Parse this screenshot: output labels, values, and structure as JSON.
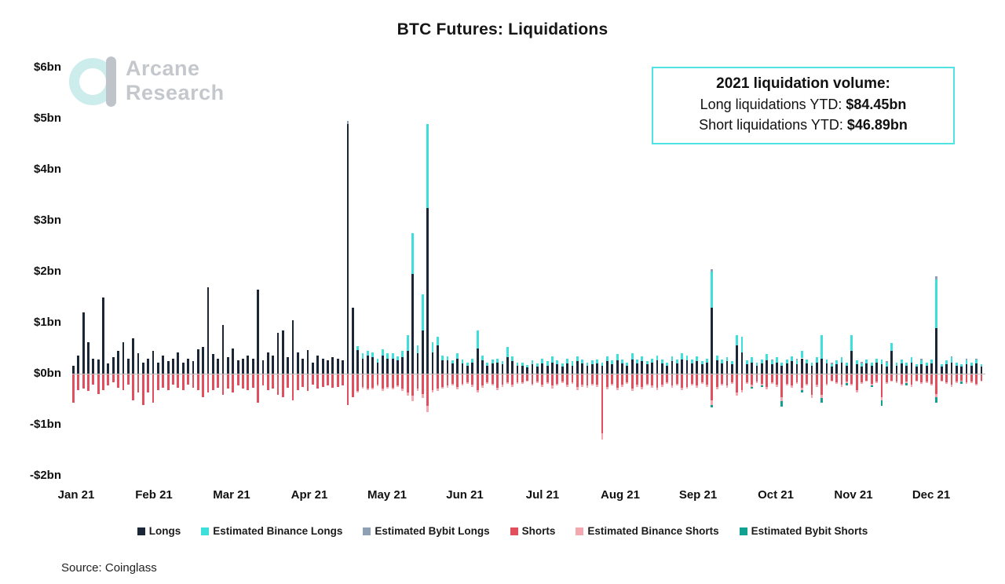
{
  "title": "BTC Futures: Liquidations",
  "logo": {
    "line1": "Arcane",
    "line2": "Research"
  },
  "info_box": {
    "heading": "2021 liquidation volume:",
    "lines": [
      {
        "label": "Long liquidations YTD: ",
        "value": "$84.45bn"
      },
      {
        "label": "Short liquidations YTD: ",
        "value": "$46.89bn"
      }
    ],
    "border_color": "#4fe3e3"
  },
  "source": "Source: Coinglass",
  "chart_data": {
    "type": "bar",
    "stacked": true,
    "grid": false,
    "legend_position": "bottom",
    "title": "BTC Futures: Liquidations",
    "unit": "bn USD per day",
    "ylim": [
      -2,
      6
    ],
    "y_ticks": [
      {
        "label": "$6bn",
        "value": 6
      },
      {
        "label": "$5bn",
        "value": 5
      },
      {
        "label": "$4bn",
        "value": 4
      },
      {
        "label": "$3bn",
        "value": 3
      },
      {
        "label": "$2bn",
        "value": 2
      },
      {
        "label": "$1bn",
        "value": 1
      },
      {
        "label": "$0bn",
        "value": 0
      },
      {
        "label": "-$1bn",
        "value": -1
      },
      {
        "label": "-$2bn",
        "value": -2
      }
    ],
    "x_tick_labels": [
      "Jan 21",
      "Feb 21",
      "Mar 21",
      "Apr 21",
      "May 21",
      "Jun 21",
      "Jul 21",
      "Aug 21",
      "Sep 21",
      "Oct 21",
      "Nov 21",
      "Dec 21"
    ],
    "series": [
      {
        "name": "Longs",
        "color": "#1b2737",
        "direction": "up",
        "values": [
          0.15,
          0.35,
          1.2,
          0.62,
          0.3,
          0.28,
          1.5,
          0.2,
          0.32,
          0.45,
          0.62,
          0.3,
          0.7,
          0.4,
          0.22,
          0.3,
          0.45,
          0.22,
          0.35,
          0.25,
          0.3,
          0.42,
          0.22,
          0.3,
          0.25,
          0.48,
          0.52,
          1.7,
          0.38,
          0.3,
          0.95,
          0.32,
          0.5,
          0.26,
          0.3,
          0.36,
          0.3,
          1.65,
          0.26,
          0.42,
          0.36,
          0.8,
          0.85,
          0.32,
          1.05,
          0.42,
          0.3,
          0.46,
          0.22,
          0.36,
          0.3,
          0.26,
          0.32,
          0.3,
          0.26,
          4.9,
          1.3,
          0.46,
          0.3,
          0.36,
          0.32,
          0.22,
          0.36,
          0.3,
          0.3,
          0.26,
          0.32,
          0.45,
          1.95,
          0.4,
          0.85,
          3.25,
          0.42,
          0.55,
          0.26,
          0.26,
          0.2,
          0.3,
          0.2,
          0.16,
          0.22,
          0.5,
          0.26,
          0.16,
          0.2,
          0.22,
          0.18,
          0.32,
          0.24,
          0.16,
          0.16,
          0.12,
          0.18,
          0.14,
          0.2,
          0.16,
          0.22,
          0.18,
          0.14,
          0.2,
          0.16,
          0.24,
          0.2,
          0.16,
          0.18,
          0.2,
          0.16,
          0.24,
          0.18,
          0.26,
          0.2,
          0.16,
          0.28,
          0.2,
          0.24,
          0.18,
          0.22,
          0.26,
          0.2,
          0.16,
          0.24,
          0.2,
          0.28,
          0.26,
          0.2,
          0.24,
          0.18,
          0.22,
          1.3,
          0.26,
          0.2,
          0.24,
          0.18,
          0.55,
          0.42,
          0.18,
          0.22,
          0.16,
          0.2,
          0.26,
          0.18,
          0.22,
          0.16,
          0.2,
          0.24,
          0.18,
          0.3,
          0.2,
          0.16,
          0.22,
          0.3,
          0.2,
          0.14,
          0.18,
          0.22,
          0.16,
          0.45,
          0.18,
          0.14,
          0.2,
          0.16,
          0.22,
          0.18,
          0.14,
          0.45,
          0.16,
          0.2,
          0.16,
          0.22,
          0.14,
          0.18,
          0.16,
          0.2,
          0.9,
          0.14,
          0.18,
          0.22,
          0.16,
          0.14,
          0.18,
          0.16,
          0.2,
          0.14
        ]
      },
      {
        "name": "Estimated Binance Longs",
        "color": "#3cdfda",
        "direction": "up",
        "values": [
          0,
          0,
          0,
          0,
          0,
          0,
          0,
          0,
          0,
          0,
          0,
          0,
          0,
          0,
          0,
          0,
          0,
          0,
          0,
          0,
          0,
          0,
          0,
          0,
          0,
          0,
          0,
          0,
          0,
          0,
          0,
          0,
          0,
          0,
          0,
          0,
          0,
          0,
          0,
          0,
          0,
          0,
          0,
          0,
          0,
          0,
          0,
          0,
          0,
          0,
          0,
          0,
          0,
          0,
          0,
          0,
          0,
          0.08,
          0.1,
          0.08,
          0.1,
          0.08,
          0.12,
          0.1,
          0.1,
          0.08,
          0.12,
          0.3,
          0.8,
          0.15,
          0.7,
          1.65,
          0.2,
          0.18,
          0.1,
          0.08,
          0.06,
          0.1,
          0.08,
          0.06,
          0.08,
          0.35,
          0.1,
          0.06,
          0.08,
          0.08,
          0.06,
          0.2,
          0.1,
          0.06,
          0.06,
          0.05,
          0.08,
          0.06,
          0.1,
          0.08,
          0.12,
          0.08,
          0.06,
          0.1,
          0.08,
          0.1,
          0.08,
          0.06,
          0.08,
          0.08,
          0.06,
          0.1,
          0.08,
          0.12,
          0.08,
          0.06,
          0.12,
          0.08,
          0.1,
          0.06,
          0.08,
          0.1,
          0.08,
          0.06,
          0.1,
          0.08,
          0.12,
          0.1,
          0.08,
          0.1,
          0.06,
          0.08,
          0.7,
          0.1,
          0.08,
          0.08,
          0.06,
          0.2,
          0.3,
          0.08,
          0.1,
          0.06,
          0.08,
          0.12,
          0.08,
          0.1,
          0.06,
          0.08,
          0.1,
          0.08,
          0.14,
          0.08,
          0.06,
          0.1,
          0.45,
          0.08,
          0.05,
          0.08,
          0.1,
          0.06,
          0.3,
          0.08,
          0.06,
          0.08,
          0.06,
          0.08,
          0.1,
          0.08,
          0.15,
          0.06,
          0.08,
          0.06,
          0.1,
          0.05,
          0.08,
          0.06,
          0.08,
          0.95,
          0.05,
          0.08,
          0.1,
          0.06,
          0.05,
          0.08,
          0.06,
          0.08,
          0.05
        ]
      },
      {
        "name": "Estimated Bybit Longs",
        "color": "#8e9fb6",
        "direction": "up",
        "values_sparse": {
          "55": 0.05,
          "128": 0.05,
          "140": 0.02,
          "145": 0.03,
          "152": 0.02,
          "158": 0.03,
          "163": 0.02,
          "170": 0.03,
          "173": 0.06,
          "176": 0.02,
          "179": 0.03,
          "181": 0.02
        }
      },
      {
        "name": "Shorts",
        "color": "#e14f5e",
        "direction": "down",
        "values": [
          -0.55,
          -0.3,
          -0.28,
          -0.32,
          -0.2,
          -0.38,
          -0.3,
          -0.22,
          -0.16,
          -0.26,
          -0.3,
          -0.2,
          -0.5,
          -0.35,
          -0.6,
          -0.35,
          -0.55,
          -0.3,
          -0.26,
          -0.3,
          -0.2,
          -0.26,
          -0.3,
          -0.2,
          -0.26,
          -0.3,
          -0.45,
          -0.35,
          -0.3,
          -0.26,
          -0.4,
          -0.28,
          -0.35,
          -0.22,
          -0.28,
          -0.3,
          -0.26,
          -0.55,
          -0.22,
          -0.3,
          -0.28,
          -0.4,
          -0.45,
          -0.26,
          -0.5,
          -0.3,
          -0.24,
          -0.32,
          -0.2,
          -0.28,
          -0.24,
          -0.22,
          -0.26,
          -0.24,
          -0.22,
          -0.6,
          -0.45,
          -0.32,
          -0.24,
          -0.28,
          -0.26,
          -0.2,
          -0.28,
          -0.24,
          -0.26,
          -0.22,
          -0.28,
          -0.35,
          -0.42,
          -0.28,
          -0.38,
          -0.62,
          -0.3,
          -0.28,
          -0.24,
          -0.22,
          -0.18,
          -0.24,
          -0.18,
          -0.15,
          -0.2,
          -0.3,
          -0.22,
          -0.15,
          -0.18,
          -0.26,
          -0.2,
          -0.16,
          -0.2,
          -0.15,
          -0.15,
          -0.12,
          -0.18,
          -0.14,
          -0.2,
          -0.16,
          -0.22,
          -0.18,
          -0.14,
          -0.2,
          -0.16,
          -0.25,
          -0.2,
          -0.22,
          -0.18,
          -0.2,
          -1.15,
          -0.24,
          -0.18,
          -0.26,
          -0.2,
          -0.16,
          -0.28,
          -0.2,
          -0.24,
          -0.18,
          -0.22,
          -0.26,
          -0.2,
          -0.16,
          -0.22,
          -0.18,
          -0.26,
          -0.24,
          -0.18,
          -0.22,
          -0.16,
          -0.2,
          -0.5,
          -0.24,
          -0.18,
          -0.22,
          -0.16,
          -0.35,
          -0.3,
          -0.16,
          -0.2,
          -0.14,
          -0.18,
          -0.24,
          -0.16,
          -0.2,
          -0.45,
          -0.18,
          -0.22,
          -0.16,
          -0.26,
          -0.18,
          -0.4,
          -0.2,
          -0.4,
          -0.18,
          -0.12,
          -0.16,
          -0.2,
          -0.14,
          -0.18,
          -0.3,
          -0.16,
          -0.12,
          -0.18,
          -0.14,
          -0.45,
          -0.16,
          -0.12,
          -0.14,
          -0.18,
          -0.14,
          -0.2,
          -0.12,
          -0.16,
          -0.14,
          -0.18,
          -0.38,
          -0.12,
          -0.16,
          -0.2,
          -0.14,
          -0.12,
          -0.16,
          -0.14,
          -0.18,
          -0.12
        ]
      },
      {
        "name": "Estimated Binance Shorts",
        "color": "#f3a7af",
        "direction": "down",
        "values": [
          0,
          0,
          0,
          0,
          0,
          0,
          0,
          0,
          0,
          0,
          0,
          0,
          0,
          0,
          0,
          0,
          0,
          0,
          0,
          0,
          0,
          0,
          0,
          0,
          0,
          0,
          0,
          0,
          0,
          0,
          0,
          0,
          0,
          0,
          0,
          0,
          0,
          0,
          0,
          0,
          0,
          0,
          0,
          0,
          0,
          0,
          0,
          0,
          0,
          0,
          0,
          0,
          0,
          0,
          0,
          0,
          0,
          -0.03,
          -0.04,
          -0.03,
          -0.04,
          -0.03,
          -0.05,
          -0.04,
          -0.04,
          -0.03,
          -0.05,
          -0.06,
          -0.1,
          -0.05,
          -0.08,
          -0.12,
          -0.06,
          -0.05,
          -0.04,
          -0.04,
          -0.03,
          -0.05,
          -0.03,
          -0.03,
          -0.04,
          -0.06,
          -0.04,
          -0.03,
          -0.03,
          -0.05,
          -0.04,
          -0.03,
          -0.04,
          -0.03,
          -0.03,
          -0.02,
          -0.04,
          -0.03,
          -0.04,
          -0.03,
          -0.05,
          -0.04,
          -0.03,
          -0.04,
          -0.03,
          -0.05,
          -0.04,
          -0.04,
          -0.03,
          -0.04,
          -0.12,
          -0.05,
          -0.04,
          -0.05,
          -0.04,
          -0.03,
          -0.05,
          -0.04,
          -0.05,
          -0.03,
          -0.04,
          -0.05,
          -0.04,
          -0.03,
          -0.04,
          -0.03,
          -0.05,
          -0.04,
          -0.03,
          -0.04,
          -0.03,
          -0.04,
          -0.1,
          -0.05,
          -0.03,
          -0.04,
          -0.03,
          -0.06,
          -0.05,
          -0.03,
          -0.04,
          -0.03,
          -0.03,
          -0.05,
          -0.03,
          -0.04,
          -0.08,
          -0.03,
          -0.04,
          -0.03,
          -0.05,
          -0.03,
          -0.06,
          -0.04,
          -0.06,
          -0.04,
          -0.02,
          -0.03,
          -0.04,
          -0.03,
          -0.04,
          -0.05,
          -0.03,
          -0.02,
          -0.04,
          -0.03,
          -0.06,
          -0.03,
          -0.02,
          -0.03,
          -0.04,
          -0.03,
          -0.04,
          -0.02,
          -0.03,
          -0.03,
          -0.04,
          -0.07,
          -0.02,
          -0.03,
          -0.04,
          -0.03,
          -0.02,
          -0.03,
          -0.03,
          -0.04,
          -0.02
        ]
      },
      {
        "name": "Estimated Bybit Shorts",
        "color": "#11a192",
        "direction": "down",
        "values_sparse": {
          "128": -0.05,
          "136": -0.03,
          "138": -0.04,
          "142": -0.1,
          "146": -0.05,
          "150": -0.1,
          "155": -0.04,
          "160": -0.03,
          "162": -0.1,
          "167": -0.04,
          "173": -0.1,
          "178": -0.05
        }
      }
    ]
  }
}
